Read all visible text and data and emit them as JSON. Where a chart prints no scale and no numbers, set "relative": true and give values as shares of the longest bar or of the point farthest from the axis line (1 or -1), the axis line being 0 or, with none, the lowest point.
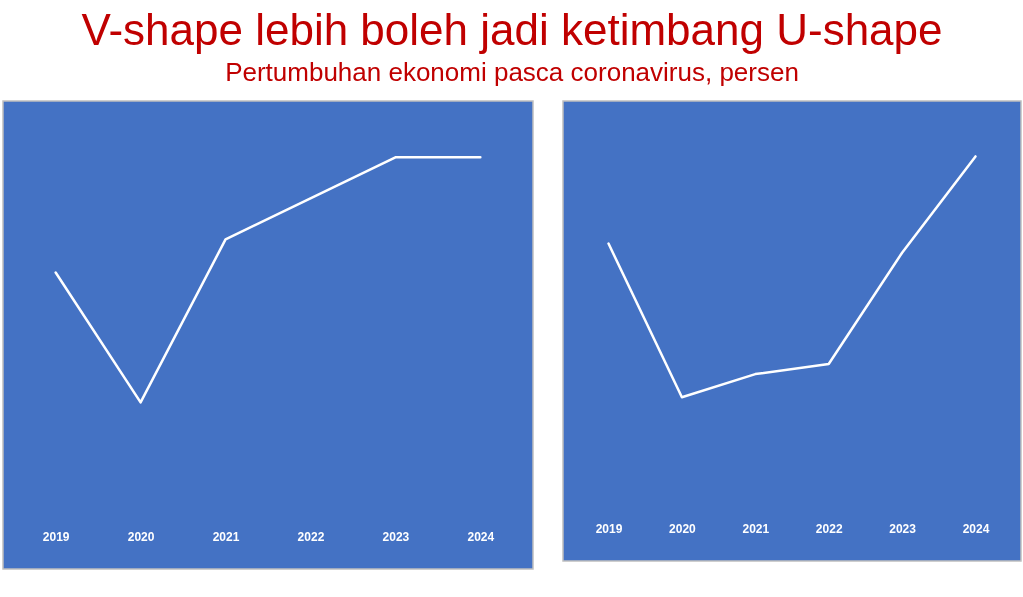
{
  "chart_data": [
    {
      "type": "line",
      "title": "V-shape lebih boleh jadi ketimbang U-shape",
      "subtitle": "Pertumbuhan ekonomi pasca coronavirus, persen",
      "relative": true,
      "categories": [
        "2019",
        "2020",
        "2021",
        "2022",
        "2023",
        "2024"
      ],
      "series": [
        {
          "color": "#ffffff",
          "values": [
            0.53,
            0,
            0.665,
            0.833,
            1,
            1
          ]
        }
      ]
    },
    {
      "type": "line",
      "relative": true,
      "categories": [
        "2019",
        "2020",
        "2021",
        "2022",
        "2023",
        "2024"
      ],
      "series": [
        {
          "color": "#ffffff",
          "values": [
            0.638,
            0,
            0.096,
            0.138,
            0.6,
            1
          ]
        }
      ]
    }
  ]
}
